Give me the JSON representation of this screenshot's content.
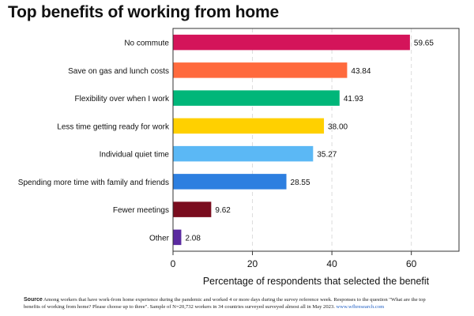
{
  "chart_data": {
    "type": "bar",
    "orientation": "horizontal",
    "title": "Top benefits of working from home",
    "xlabel": "Percentage of respondents that selected the benefit",
    "ylabel": "",
    "xlim": [
      0,
      72
    ],
    "xticks": [
      0,
      20,
      40,
      60
    ],
    "grid": true,
    "categories": [
      "No commute",
      "Save on gas and lunch costs",
      "Flexibility over when I work",
      "Less time getting ready for work",
      "Individual quiet time",
      "Spending more time with family and friends",
      "Fewer meetings",
      "Other"
    ],
    "values": [
      59.65,
      43.84,
      41.93,
      38.0,
      35.27,
      28.55,
      9.62,
      2.08
    ],
    "value_labels": [
      "59.65",
      "43.84",
      "41.93",
      "38.00",
      "35.27",
      "28.55",
      "9.62",
      "2.08"
    ],
    "colors": [
      "#d4145a",
      "#ff6a3d",
      "#00b679",
      "#ffd000",
      "#5bb8f5",
      "#2d7fe0",
      "#7a0d1f",
      "#5b2aa0"
    ]
  },
  "source": {
    "label": "Source",
    "text": "Among workers that have work-from home experience during the pandemic and worked 4 or more days during the survey reference week. Responses to the question \"What are the top benefits of working from home? Please choose up to three\". Sample of N=20,732 workers in 34 countries surveyed surveyed almost all in May 2023.",
    "link": "www.wfhresearch.com"
  }
}
